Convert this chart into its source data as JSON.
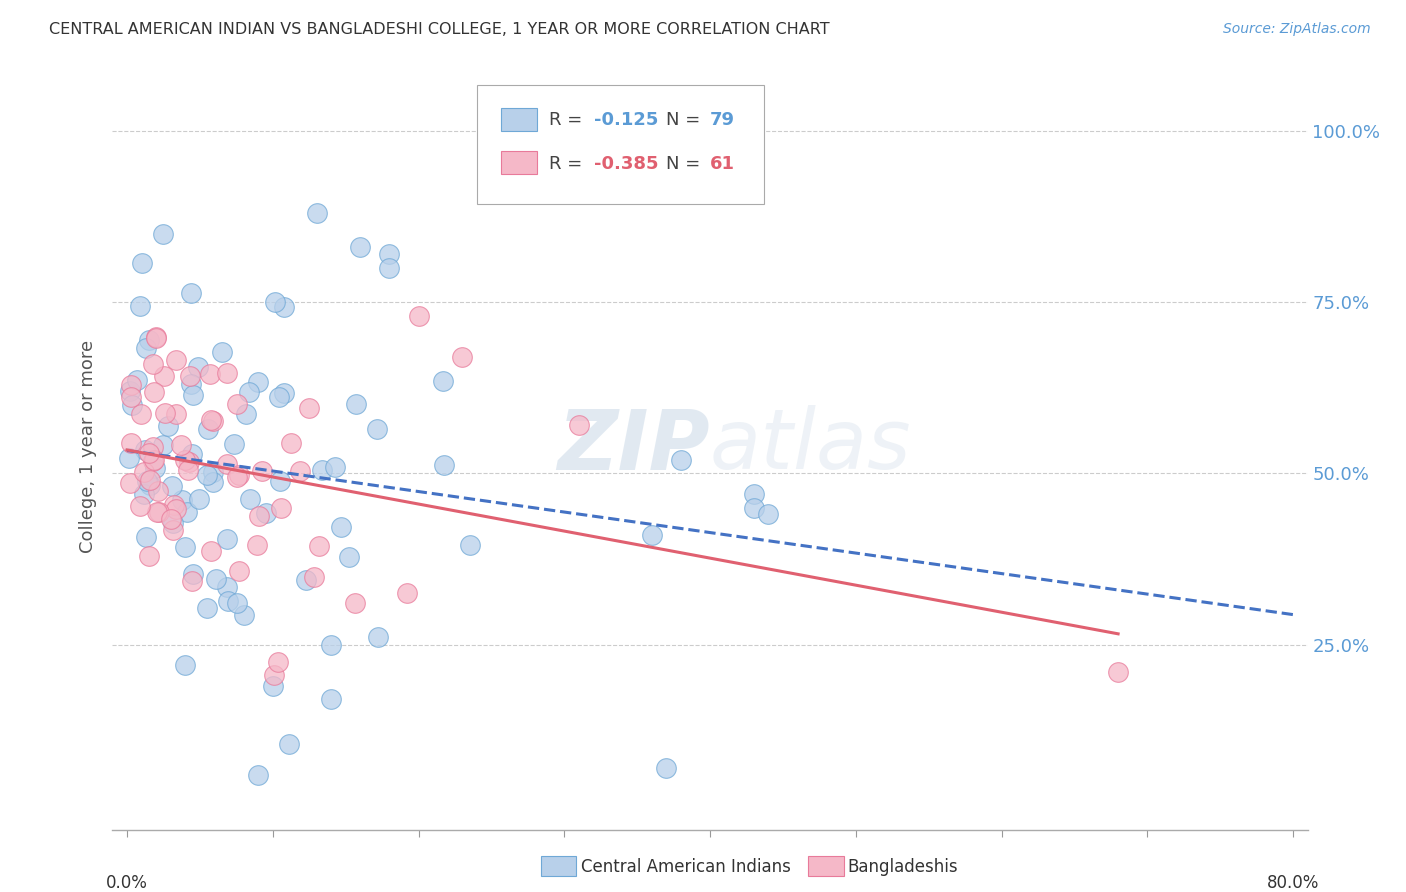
{
  "title": "CENTRAL AMERICAN INDIAN VS BANGLADESHI COLLEGE, 1 YEAR OR MORE CORRELATION CHART",
  "source": "Source: ZipAtlas.com",
  "ylabel": "College, 1 year or more",
  "blue_R": -0.125,
  "blue_N": 79,
  "pink_R": -0.385,
  "pink_N": 61,
  "xlim_min": 0.0,
  "xlim_max": 0.8,
  "ylim_min": 0.0,
  "ylim_max": 1.1,
  "yticks": [
    0.25,
    0.5,
    0.75,
    1.0
  ],
  "ytick_labels": [
    "25.0%",
    "50.0%",
    "75.0%",
    "100.0%"
  ],
  "blue_face_color": "#b8d0ea",
  "blue_edge_color": "#6fa8d6",
  "pink_face_color": "#f5b8c8",
  "pink_edge_color": "#e87a9a",
  "blue_line_color": "#4472c4",
  "pink_line_color": "#e06070",
  "grid_color": "#cccccc",
  "watermark": "ZIPatlas",
  "watermark_color": "#c8d8e8",
  "background_color": "#ffffff",
  "title_color": "#333333",
  "source_color": "#5b9bd5",
  "axis_label_color": "#555555",
  "right_tick_color": "#5b9bd5",
  "legend_blue_R_color": "#5b9bd5",
  "legend_pink_R_color": "#e06070",
  "legend_blue_N_color": "#5b9bd5",
  "legend_pink_N_color": "#e06070"
}
